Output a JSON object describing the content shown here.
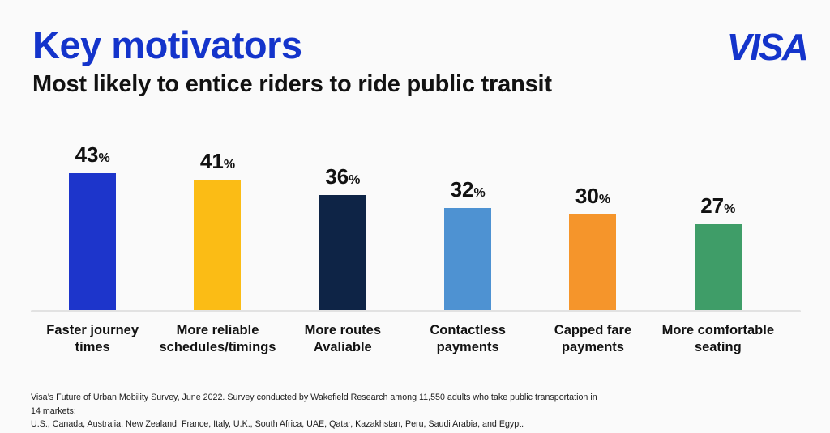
{
  "header": {
    "title": "Key motivators",
    "subtitle": "Most likely to entice riders to ride public transit"
  },
  "brand": {
    "logo_text": "VISA",
    "color": "#1434CB"
  },
  "chart_data": {
    "type": "bar",
    "title": "Key motivators",
    "subtitle": "Most likely to entice riders to ride public transit",
    "categories": [
      "Faster journey times",
      "More reliable schedules/timings",
      "More routes Avaliable",
      "Contactless payments",
      "Capped fare payments",
      "More comfortable seating"
    ],
    "label_lines": [
      [
        "Faster journey",
        "times"
      ],
      [
        "More reliable",
        "schedules/timings"
      ],
      [
        "More routes",
        "Avaliable"
      ],
      [
        "Contactless",
        "payments"
      ],
      [
        "Capped fare",
        "payments"
      ],
      [
        "More comfortable",
        "seating"
      ]
    ],
    "values": [
      43,
      41,
      36,
      32,
      30,
      27
    ],
    "unit": "%",
    "bar_colors": [
      "#1D35CB",
      "#FBBC15",
      "#0E2446",
      "#4E92D2",
      "#F5952B",
      "#3F9D68"
    ],
    "value_labels_shown": true,
    "grid": false,
    "axes_shown": false,
    "ylim": [
      0,
      45
    ],
    "baseline_color": "#E2E2E2",
    "background": "#FAFAFA",
    "text_color": "#121212"
  },
  "footnote": {
    "text": "Visa’s Future of Urban Mobility Survey, June 2022. Survey conducted by Wakefield Research among 11,550 adults who take public transportation in 14 markets:\nU.S., Canada, Australia, New Zealand, France, Italy, U.K., South Africa, UAE, Qatar, Kazakhstan, Peru, Saudi Arabia, and Egypt."
  }
}
